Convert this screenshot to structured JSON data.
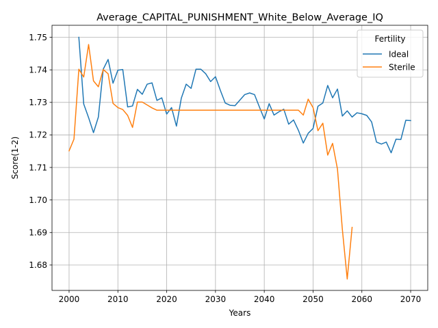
{
  "chart_data": {
    "type": "line",
    "title": "Average_CAPITAL_PUNISHMENT_White_Below_Average_IQ",
    "xlabel": "Years",
    "ylabel": "Score(1-2)",
    "xlim": [
      1996.5,
      2073.5
    ],
    "ylim": [
      1.6722,
      1.7537
    ],
    "xticks": [
      2000,
      2010,
      2020,
      2030,
      2040,
      2050,
      2060,
      2070
    ],
    "yticks": [
      1.68,
      1.69,
      1.7,
      1.71,
      1.72,
      1.73,
      1.74,
      1.75
    ],
    "ytick_labels": [
      "1.68",
      "1.69",
      "1.70",
      "1.71",
      "1.72",
      "1.73",
      "1.74",
      "1.75"
    ],
    "grid": true,
    "legend": {
      "title": "Fertility",
      "placement": "top-right"
    },
    "series": [
      {
        "name": "Ideal",
        "color": "#1f77b4",
        "x": [
          2002,
          2003,
          2004,
          2005,
          2006,
          2007,
          2008,
          2009,
          2010,
          2011,
          2012,
          2013,
          2014,
          2015,
          2016,
          2017,
          2018,
          2019,
          2020,
          2021,
          2022,
          2023,
          2024,
          2025,
          2026,
          2027,
          2028,
          2029,
          2030,
          2031,
          2032,
          2033,
          2034,
          2035,
          2036,
          2037,
          2038,
          2039,
          2040,
          2041,
          2042,
          2043,
          2044,
          2045,
          2046,
          2047,
          2048,
          2049,
          2050,
          2051,
          2052,
          2053,
          2054,
          2055,
          2056,
          2057,
          2058,
          2059,
          2060,
          2061,
          2062,
          2063,
          2064,
          2065,
          2066,
          2067,
          2068,
          2069,
          2070
        ],
        "values": [
          1.75,
          1.7295,
          1.7253,
          1.7207,
          1.7255,
          1.7402,
          1.7432,
          1.7359,
          1.7399,
          1.7401,
          1.7286,
          1.7289,
          1.734,
          1.7325,
          1.7356,
          1.736,
          1.7306,
          1.7314,
          1.7264,
          1.7284,
          1.7227,
          1.7313,
          1.7356,
          1.7343,
          1.7402,
          1.7402,
          1.7388,
          1.7364,
          1.7379,
          1.7337,
          1.7298,
          1.7291,
          1.729,
          1.7307,
          1.7324,
          1.7329,
          1.7324,
          1.7286,
          1.7249,
          1.7296,
          1.7261,
          1.7271,
          1.7279,
          1.7233,
          1.7246,
          1.7214,
          1.7175,
          1.7205,
          1.722,
          1.7288,
          1.7298,
          1.7352,
          1.7314,
          1.7341,
          1.7258,
          1.7274,
          1.7255,
          1.7268,
          1.7265,
          1.726,
          1.724,
          1.7178,
          1.7172,
          1.7178,
          1.7145,
          1.7187,
          1.7186,
          1.7245,
          1.7244
        ]
      },
      {
        "name": "Sterile",
        "color": "#ff7f0e",
        "x": [
          2000,
          2001,
          2002,
          2003,
          2004,
          2005,
          2006,
          2007,
          2008,
          2009,
          2010,
          2011,
          2012,
          2013,
          2014,
          2015,
          2016,
          2017,
          2018,
          2019,
          2020,
          2021,
          2022,
          2023,
          2024,
          2025,
          2026,
          2027,
          2028,
          2029,
          2030,
          2031,
          2032,
          2033,
          2034,
          2035,
          2036,
          2037,
          2038,
          2039,
          2040,
          2041,
          2042,
          2043,
          2044,
          2045,
          2046,
          2047,
          2048,
          2049,
          2050,
          2051,
          2052,
          2053,
          2054,
          2055,
          2056,
          2057,
          2058
        ],
        "values": [
          1.7151,
          1.7187,
          1.7402,
          1.7378,
          1.7478,
          1.7366,
          1.7348,
          1.7401,
          1.7388,
          1.7297,
          1.7284,
          1.7278,
          1.726,
          1.7223,
          1.7301,
          1.7301,
          1.7292,
          1.7283,
          1.7276,
          1.7276,
          1.7276,
          1.7276,
          1.7276,
          1.7276,
          1.7276,
          1.7276,
          1.7276,
          1.7276,
          1.7276,
          1.7276,
          1.7276,
          1.7276,
          1.7276,
          1.7276,
          1.7276,
          1.7276,
          1.7276,
          1.7276,
          1.7276,
          1.7276,
          1.7276,
          1.7276,
          1.7276,
          1.7276,
          1.7276,
          1.7276,
          1.7276,
          1.7276,
          1.7261,
          1.731,
          1.7284,
          1.7213,
          1.7236,
          1.7138,
          1.7174,
          1.7095,
          1.691,
          1.6757,
          1.6916
        ]
      }
    ]
  }
}
